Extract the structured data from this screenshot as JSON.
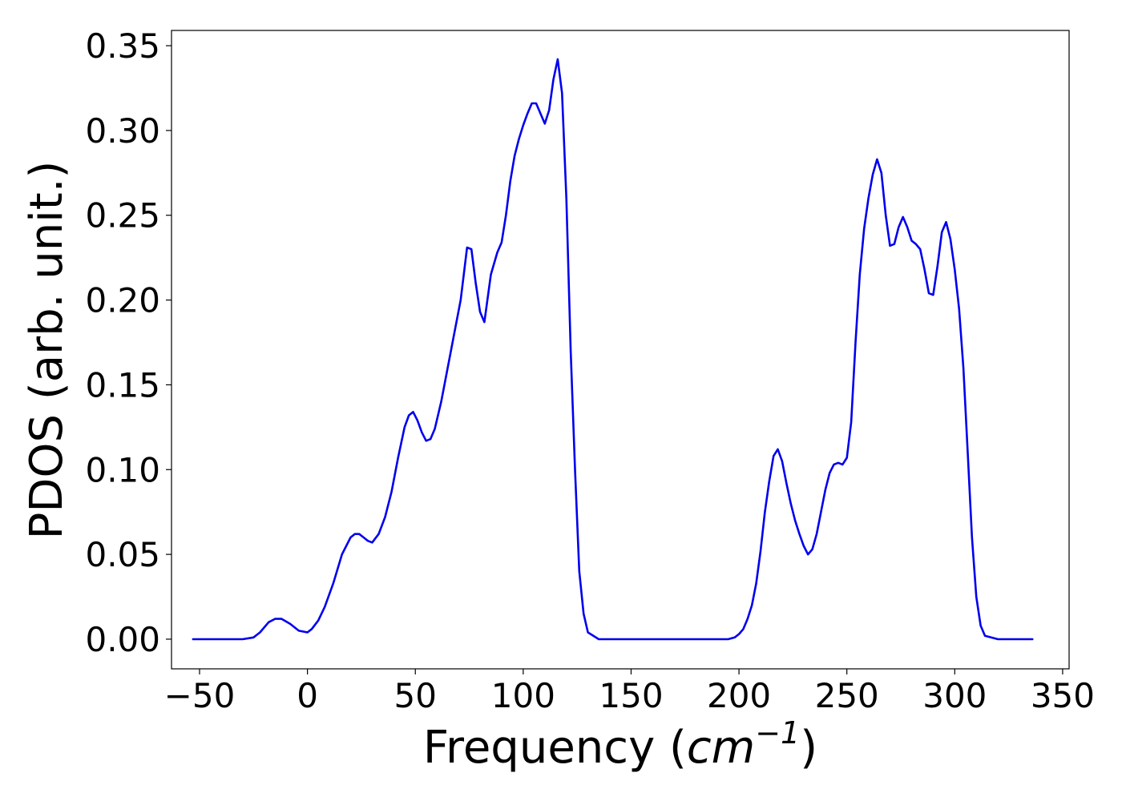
{
  "chart_data": {
    "type": "line",
    "title": "",
    "xlabel": "Frequency (cm^-1)",
    "xlabel_parts": {
      "prefix": "Frequency (",
      "unit_base": "cm",
      "unit_exp": "−1",
      "suffix": ")"
    },
    "ylabel": "PDOS (arb. unit.)",
    "xlim": [
      -63,
      353
    ],
    "ylim": [
      -0.0175,
      0.359
    ],
    "xticks": [
      -50,
      0,
      50,
      100,
      150,
      200,
      250,
      300,
      350
    ],
    "xtick_labels": [
      "−50",
      "0",
      "50",
      "100",
      "150",
      "200",
      "250",
      "300",
      "350"
    ],
    "yticks": [
      0.0,
      0.05,
      0.1,
      0.15,
      0.2,
      0.25,
      0.3,
      0.35
    ],
    "ytick_labels": [
      "0.00",
      "0.05",
      "0.10",
      "0.15",
      "0.20",
      "0.25",
      "0.30",
      "0.35"
    ],
    "grid": false,
    "legend": "none",
    "series": [
      {
        "color": "#0000ee",
        "x": [
          -53,
          -30,
          -25,
          -22,
          -18,
          -15,
          -12,
          -8,
          -4,
          0,
          2,
          5,
          8,
          12,
          16,
          20,
          22,
          24,
          26,
          28,
          30,
          33,
          36,
          39,
          42,
          45,
          47,
          49,
          51,
          53,
          55,
          57,
          59,
          62,
          65,
          68,
          71,
          74,
          76,
          78,
          80,
          82,
          85,
          88,
          90,
          92,
          94,
          96,
          98,
          100,
          102,
          104,
          106,
          108,
          110,
          112,
          114,
          116,
          118,
          120,
          122,
          124,
          126,
          128,
          130,
          135,
          150,
          175,
          195,
          198,
          200,
          202,
          204,
          206,
          208,
          210,
          212,
          214,
          216,
          218,
          220,
          222,
          224,
          226,
          228,
          230,
          232,
          234,
          236,
          238,
          240,
          242,
          244,
          246,
          248,
          250,
          252,
          254,
          256,
          258,
          260,
          262,
          264,
          266,
          268,
          270,
          272,
          274,
          276,
          278,
          280,
          282,
          284,
          286,
          288,
          290,
          292,
          294,
          296,
          298,
          300,
          302,
          304,
          306,
          308,
          310,
          312,
          314,
          320,
          336
        ],
        "y": [
          0.0,
          0.0,
          0.001,
          0.004,
          0.01,
          0.012,
          0.012,
          0.009,
          0.005,
          0.004,
          0.006,
          0.011,
          0.019,
          0.033,
          0.05,
          0.06,
          0.062,
          0.062,
          0.06,
          0.058,
          0.057,
          0.062,
          0.072,
          0.087,
          0.107,
          0.125,
          0.132,
          0.134,
          0.129,
          0.122,
          0.117,
          0.118,
          0.124,
          0.14,
          0.16,
          0.18,
          0.2,
          0.231,
          0.23,
          0.21,
          0.193,
          0.187,
          0.215,
          0.228,
          0.234,
          0.25,
          0.27,
          0.285,
          0.295,
          0.303,
          0.31,
          0.316,
          0.316,
          0.31,
          0.304,
          0.312,
          0.33,
          0.342,
          0.322,
          0.26,
          0.17,
          0.1,
          0.04,
          0.015,
          0.004,
          0.0,
          0.0,
          0.0,
          0.0,
          0.001,
          0.003,
          0.006,
          0.012,
          0.02,
          0.033,
          0.052,
          0.075,
          0.093,
          0.108,
          0.112,
          0.105,
          0.092,
          0.08,
          0.07,
          0.062,
          0.055,
          0.05,
          0.053,
          0.062,
          0.075,
          0.088,
          0.098,
          0.103,
          0.104,
          0.103,
          0.107,
          0.128,
          0.175,
          0.215,
          0.242,
          0.26,
          0.274,
          0.283,
          0.275,
          0.25,
          0.232,
          0.233,
          0.243,
          0.249,
          0.243,
          0.235,
          0.233,
          0.23,
          0.218,
          0.204,
          0.203,
          0.22,
          0.24,
          0.246,
          0.236,
          0.218,
          0.195,
          0.16,
          0.11,
          0.06,
          0.025,
          0.008,
          0.002,
          0.0,
          0.0
        ]
      }
    ]
  }
}
